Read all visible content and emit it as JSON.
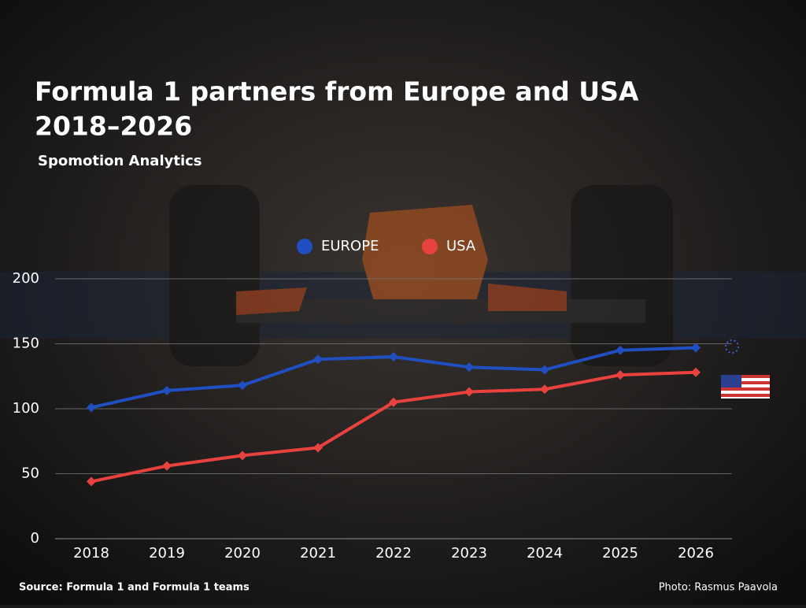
{
  "chart_data": {
    "type": "line",
    "title": [
      "Formula 1 partners from Europe and USA",
      "2018–2026"
    ],
    "subtitle": "Spomotion Analytics",
    "source": "Source: Formula 1 and Formula 1 teams",
    "credit": "Photo: Rasmus Paavola",
    "categories": [
      "2018",
      "2019",
      "2020",
      "2021",
      "2022",
      "2023",
      "2024",
      "2025",
      "2026"
    ],
    "series": [
      {
        "name": "EUROPE",
        "color": "#1f4fc0",
        "values": [
          101,
          114,
          118,
          138,
          140,
          132,
          130,
          145,
          147
        ]
      },
      {
        "name": "USA",
        "color": "#e8423f",
        "values": [
          44,
          56,
          64,
          70,
          105,
          113,
          115,
          126,
          128
        ]
      }
    ],
    "ylim": [
      0,
      200
    ],
    "yticks": [
      0,
      50,
      100,
      150,
      200
    ],
    "grid": true
  }
}
